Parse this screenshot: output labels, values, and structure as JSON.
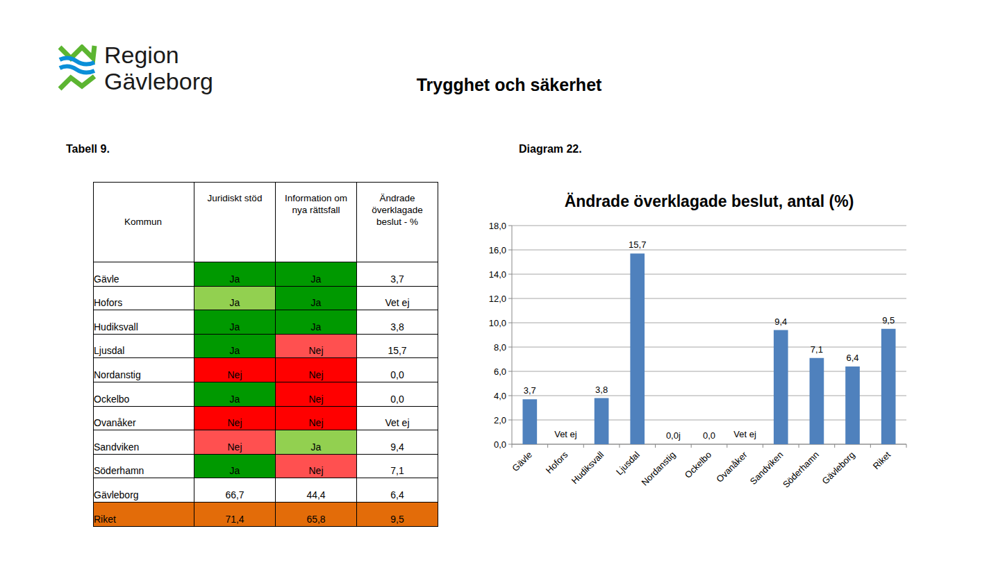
{
  "header": {
    "logo": [
      "Region",
      "Gävleborg"
    ],
    "title": "Trygghet och säkerhet",
    "table_caption": "Tabell 9.",
    "chart_caption": "Diagram 22."
  },
  "table": {
    "header": [
      "Kommun",
      "Juridiskt stöd",
      "Information om nya rättsfall",
      "Ändrade överklagade beslut - %"
    ],
    "rows": [
      [
        "Gävle",
        "Ja",
        "Ja",
        "3,7"
      ],
      [
        "Hofors",
        "Ja",
        "Ja",
        "Vet ej"
      ],
      [
        "Hudiksvall",
        "Ja",
        "Ja",
        "3,8"
      ],
      [
        "Ljusdal",
        "Ja",
        "Nej",
        "15,7"
      ],
      [
        "Nordanstig",
        "Nej",
        "Nej",
        "0,0"
      ],
      [
        "Ockelbo",
        "Ja",
        "Nej",
        "0,0"
      ],
      [
        "Ovanåker",
        "Nej",
        "Nej",
        "Vet ej"
      ],
      [
        "Sandviken",
        "Nej",
        "Ja",
        "9,4"
      ],
      [
        "Söderhamn",
        "Ja",
        "Nej",
        "7,1"
      ],
      [
        "Gävleborg",
        "66,7",
        "44,4",
        "6,4"
      ],
      [
        "Riket",
        "71,4",
        "65,8",
        "9,5"
      ]
    ],
    "cell_colors": [
      [
        null,
        "#009900",
        "#009900",
        null
      ],
      [
        null,
        "#92d050",
        "#009900",
        null
      ],
      [
        null,
        "#009900",
        "#009900",
        null
      ],
      [
        null,
        "#009900",
        "#ff5050",
        null
      ],
      [
        null,
        "#ff0000",
        "#ff0000",
        null
      ],
      [
        null,
        "#009900",
        "#ff0000",
        null
      ],
      [
        null,
        "#ff0000",
        "#ff0000",
        null
      ],
      [
        null,
        "#ff5050",
        "#92d050",
        null
      ],
      [
        null,
        "#009900",
        "#ff5050",
        null
      ],
      [
        null,
        null,
        null,
        null
      ],
      [
        "#e36c09",
        "#e36c09",
        "#e36c09",
        "#e36c09"
      ]
    ]
  },
  "chart_data": {
    "type": "bar",
    "title": "Ändrade överklagade beslut, antal (%)",
    "categories": [
      "Gävle",
      "Hofors",
      "Hudiksvall",
      "Ljusdal",
      "Nordanstig",
      "Ockelbo",
      "Ovanåker",
      "Sandviken",
      "Söderhamn",
      "Gävleborg",
      "Riket"
    ],
    "values": [
      3.7,
      null,
      3.8,
      15.7,
      0.0,
      0.0,
      null,
      9.4,
      7.1,
      6.4,
      9.5
    ],
    "value_labels": [
      "3,7",
      "Vet ej",
      "3,8",
      "15,7",
      "0,0j",
      "0,0",
      "Vet ej",
      "9,4",
      "7,1",
      "6,4",
      "9,5"
    ],
    "data_labels": true,
    "color": "#4f81bd",
    "ylim": [
      0,
      18
    ],
    "yticks": [
      {
        "value": 0,
        "label": "0,0"
      },
      {
        "value": 2,
        "label": "2,0"
      },
      {
        "value": 4,
        "label": "4,0"
      },
      {
        "value": 6,
        "label": "6,0"
      },
      {
        "value": 8,
        "label": "8,0"
      },
      {
        "value": 10,
        "label": "10,0"
      },
      {
        "value": 12,
        "label": "12,0"
      },
      {
        "value": 14,
        "label": "14,0"
      },
      {
        "value": 16,
        "label": "16,0"
      },
      {
        "value": 18,
        "label": "18,0"
      }
    ],
    "grid": true
  }
}
